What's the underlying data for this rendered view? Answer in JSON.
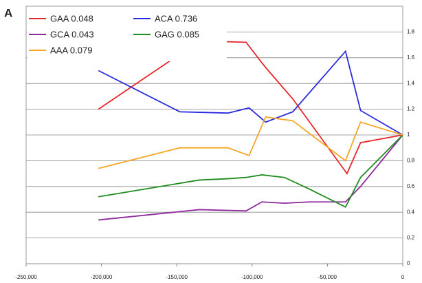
{
  "chart_data": {
    "type": "line",
    "panel_label": "A",
    "xlim": [
      -250000,
      0
    ],
    "xticks": [
      {
        "value": -250000,
        "label": "-250,000"
      },
      {
        "value": -200000,
        "label": "-200,000"
      },
      {
        "value": -150000,
        "label": "-150,000"
      },
      {
        "value": -100000,
        "label": "-100,000"
      },
      {
        "value": -50000,
        "label": "-50,000"
      },
      0
    ],
    "ylim": [
      0,
      2
    ],
    "yticks": [
      0,
      0.2,
      0.4,
      0.6,
      0.8,
      1,
      1.2,
      1.4,
      1.6,
      1.8
    ],
    "grid": true,
    "legend": "top-left",
    "series": [
      {
        "name": "GAA 0.048",
        "color": "#e8262a",
        "x": [
          -202000,
          -135000,
          -104000,
          -93500,
          -90000,
          -73000,
          -37000,
          -28000,
          0
        ],
        "values": [
          1.2,
          1.73,
          1.72,
          1.56,
          1.51,
          1.28,
          0.7,
          0.94,
          1.0
        ]
      },
      {
        "name": "ACA 0.736",
        "color": "#2a2ae0",
        "x": [
          -202000,
          -148000,
          -116000,
          -102000,
          -91000,
          -73000,
          -38000,
          -28000,
          0
        ],
        "values": [
          1.5,
          1.18,
          1.17,
          1.21,
          1.1,
          1.18,
          1.65,
          1.19,
          1.0
        ]
      },
      {
        "name": "GCA 0.043",
        "color": "#8e2a9e",
        "x": [
          -202000,
          -135000,
          -104000,
          -93500,
          -78500,
          -62000,
          -38000,
          -28000,
          0
        ],
        "values": [
          0.34,
          0.42,
          0.41,
          0.48,
          0.47,
          0.48,
          0.48,
          0.6,
          1.0
        ]
      },
      {
        "name": "GAG 0.085",
        "color": "#1e8c1e",
        "x": [
          -202000,
          -135000,
          -116000,
          -104000,
          -93500,
          -78500,
          -62000,
          -38000,
          -28000,
          0
        ],
        "values": [
          0.52,
          0.65,
          0.66,
          0.67,
          0.69,
          0.67,
          0.58,
          0.44,
          0.67,
          1.0
        ]
      },
      {
        "name": "AAA 0.079",
        "color": "#f5a623",
        "x": [
          -202000,
          -148000,
          -116000,
          -102000,
          -91000,
          -73000,
          -38000,
          -28000,
          0
        ],
        "values": [
          0.74,
          0.9,
          0.9,
          0.84,
          1.14,
          1.11,
          0.8,
          1.1,
          1.0
        ]
      }
    ]
  }
}
